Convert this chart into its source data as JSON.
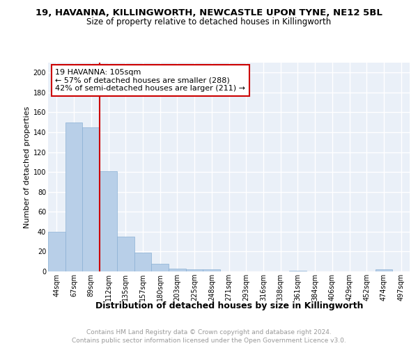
{
  "title": "19, HAVANNA, KILLINGWORTH, NEWCASTLE UPON TYNE, NE12 5BL",
  "subtitle": "Size of property relative to detached houses in Killingworth",
  "xlabel": "Distribution of detached houses by size in Killingworth",
  "ylabel": "Number of detached properties",
  "categories": [
    "44sqm",
    "67sqm",
    "89sqm",
    "112sqm",
    "135sqm",
    "157sqm",
    "180sqm",
    "203sqm",
    "225sqm",
    "248sqm",
    "271sqm",
    "293sqm",
    "316sqm",
    "338sqm",
    "361sqm",
    "384sqm",
    "406sqm",
    "429sqm",
    "452sqm",
    "474sqm",
    "497sqm"
  ],
  "values": [
    40,
    150,
    145,
    101,
    35,
    19,
    8,
    3,
    2,
    2,
    0,
    0,
    0,
    0,
    1,
    0,
    0,
    0,
    0,
    2,
    0
  ],
  "bar_color": "#b8cfe8",
  "bar_edge_color": "#8ab0d4",
  "vline_color": "#cc0000",
  "annotation_text": "19 HAVANNA: 105sqm\n← 57% of detached houses are smaller (288)\n42% of semi-detached houses are larger (211) →",
  "annotation_box_color": "#ffffff",
  "annotation_box_edge": "#cc0000",
  "ylim": [
    0,
    210
  ],
  "yticks": [
    0,
    20,
    40,
    60,
    80,
    100,
    120,
    140,
    160,
    180,
    200
  ],
  "footer_line1": "Contains HM Land Registry data © Crown copyright and database right 2024.",
  "footer_line2": "Contains public sector information licensed under the Open Government Licence v3.0.",
  "background_color": "#eaf0f8",
  "grid_color": "#ffffff",
  "title_fontsize": 9.5,
  "subtitle_fontsize": 8.5,
  "ylabel_fontsize": 8,
  "xlabel_fontsize": 9,
  "tick_fontsize": 7,
  "footer_fontsize": 6.5,
  "annotation_fontsize": 8
}
